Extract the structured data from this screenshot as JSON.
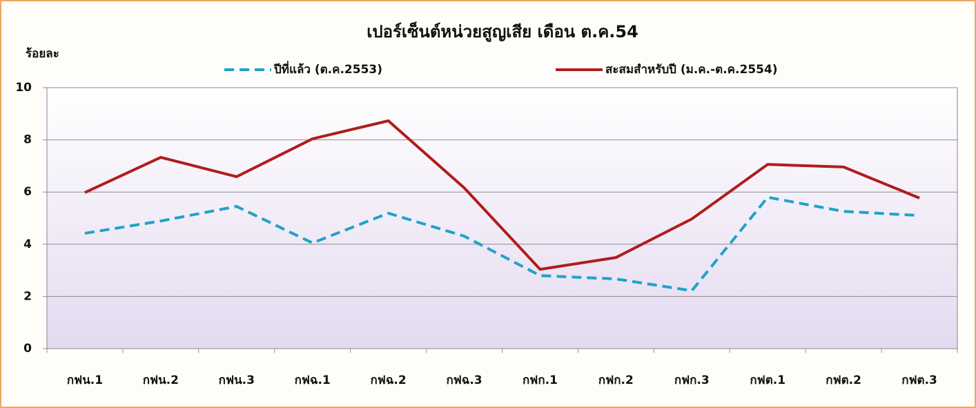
{
  "chart_data": {
    "type": "line",
    "title": "เปอร์เซ็นต์หน่วยสูญเสีย เดือน ต.ค.54",
    "y_label": "ร้อยละ",
    "categories": [
      "กฟน.1",
      "กฟน.2",
      "กฟน.3",
      "กฟฉ.1",
      "กฟฉ.2",
      "กฟฉ.3",
      "กฟก.1",
      "กฟก.2",
      "กฟก.3",
      "กฟต.1",
      "กฟต.2",
      "กฟต.3"
    ],
    "series": [
      {
        "name": "ปีที่แล้ว (ต.ค.2553)",
        "color": "#1fa2c8",
        "line_style": "dashed",
        "values": [
          4.42,
          4.89,
          5.45,
          4.05,
          5.19,
          4.31,
          2.8,
          2.67,
          2.22,
          5.8,
          5.26,
          5.1
        ]
      },
      {
        "name": "สะสมสำหรับปี (ม.ค.-ต.ค.2554)",
        "color": "#b01c1c",
        "line_style": "solid",
        "values": [
          5.98,
          7.33,
          6.59,
          8.04,
          8.73,
          6.16,
          3.04,
          3.49,
          4.97,
          7.06,
          6.96,
          5.77
        ]
      }
    ],
    "ylim": [
      0,
      10
    ],
    "yticks": [
      0,
      2,
      4,
      6,
      8,
      10
    ],
    "grid": true,
    "legend": "top"
  }
}
